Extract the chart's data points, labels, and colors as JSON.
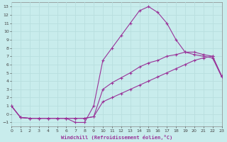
{
  "xlabel": "Windchill (Refroidissement éolien,°C)",
  "xlim": [
    0,
    23
  ],
  "ylim": [
    -1.5,
    13.5
  ],
  "xticks": [
    0,
    1,
    2,
    3,
    4,
    5,
    6,
    7,
    8,
    9,
    10,
    11,
    12,
    13,
    14,
    15,
    16,
    17,
    18,
    19,
    20,
    21,
    22,
    23
  ],
  "yticks": [
    -1,
    0,
    1,
    2,
    3,
    4,
    5,
    6,
    7,
    8,
    9,
    10,
    11,
    12,
    13
  ],
  "bg_color": "#c8ecec",
  "line_color": "#993399",
  "grid_color": "#aadddd",
  "line1_x": [
    0,
    1,
    2,
    3,
    4,
    5,
    6,
    7,
    8,
    9,
    10,
    11,
    12,
    13,
    14,
    15,
    16,
    17,
    18,
    19,
    20,
    21,
    22,
    23
  ],
  "line1_y": [
    1.0,
    -0.4,
    -0.5,
    -0.5,
    -0.5,
    -0.5,
    -0.5,
    -1.0,
    -1.0,
    1.0,
    6.5,
    8.0,
    9.5,
    11.0,
    12.5,
    13.0,
    12.3,
    11.0,
    9.0,
    7.5,
    7.2,
    7.0,
    6.8,
    4.5
  ],
  "line2_x": [
    0,
    1,
    2,
    3,
    4,
    5,
    6,
    7,
    8,
    9,
    10,
    11,
    12,
    13,
    14,
    15,
    16,
    17,
    18,
    19,
    20,
    21,
    22,
    23
  ],
  "line2_y": [
    1.0,
    -0.4,
    -0.5,
    -0.5,
    -0.5,
    -0.5,
    -0.5,
    -0.5,
    -0.5,
    -0.3,
    3.0,
    3.8,
    4.4,
    5.0,
    5.7,
    6.2,
    6.5,
    7.0,
    7.2,
    7.5,
    7.5,
    7.2,
    7.0,
    4.6
  ],
  "line3_x": [
    0,
    1,
    2,
    3,
    4,
    5,
    6,
    7,
    8,
    9,
    10,
    11,
    12,
    13,
    14,
    15,
    16,
    17,
    18,
    19,
    20,
    21,
    22,
    23
  ],
  "line3_y": [
    1.0,
    -0.4,
    -0.5,
    -0.5,
    -0.5,
    -0.5,
    -0.5,
    -0.5,
    -0.5,
    -0.3,
    1.5,
    2.0,
    2.5,
    3.0,
    3.5,
    4.0,
    4.5,
    5.0,
    5.5,
    6.0,
    6.5,
    6.8,
    7.0,
    4.6
  ]
}
